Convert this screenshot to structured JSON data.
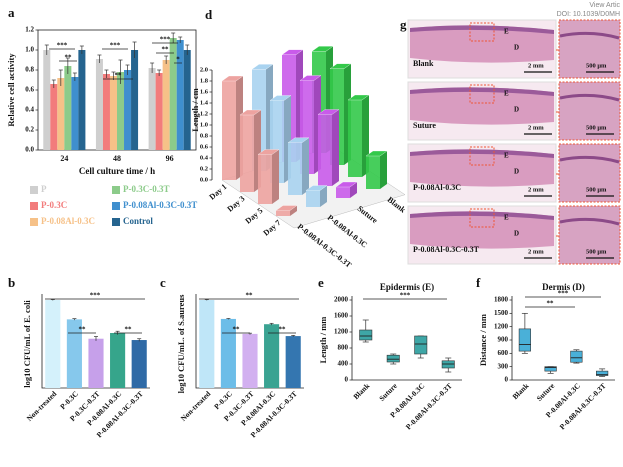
{
  "header": {
    "view": "View Artic",
    "doi": "DOI: 10.1039/D0MH"
  },
  "chart_data": [
    {
      "panel_label": "a",
      "type": "grouped_bar",
      "x_label": "Cell culture time / h",
      "y_label": "Relative cell activity",
      "categories": [
        "24",
        "48",
        "96"
      ],
      "series": [
        {
          "name": "P",
          "color": "#cfcfcf",
          "values": [
            1.0,
            0.91,
            0.82
          ],
          "errors": [
            0.05,
            0.04,
            0.05
          ]
        },
        {
          "name": "P-0.3C",
          "color": "#f27c7c",
          "values": [
            0.66,
            0.76,
            0.77
          ],
          "errors": [
            0.04,
            0.04,
            0.03
          ]
        },
        {
          "name": "P-0.08Al-0.3C",
          "color": "#f6c188",
          "values": [
            0.72,
            0.74,
            0.9
          ],
          "errors": [
            0.08,
            0.04,
            0.04
          ]
        },
        {
          "name": "P-0.3C-0.3T",
          "color": "#8ccb8a",
          "values": [
            0.84,
            0.78,
            1.12
          ],
          "errors": [
            0.08,
            0.12,
            0.05
          ]
        },
        {
          "name": "P-0.08Al-0.3C-0.3T",
          "color": "#3f8fce",
          "values": [
            0.73,
            0.8,
            1.1
          ],
          "errors": [
            0.04,
            0.05,
            0.03
          ]
        },
        {
          "name": "Control",
          "color": "#25648f",
          "values": [
            1.0,
            1.0,
            1.0
          ],
          "errors": [
            0.04,
            0.08,
            0.05
          ]
        }
      ],
      "ylim": [
        0,
        1.2
      ],
      "yticks": [
        {
          "value": 0,
          "label": "0.0"
        },
        0.2,
        0.4,
        0.6,
        0.8,
        {
          "value": 1,
          "label": "1.0"
        },
        1.2
      ],
      "annotations": [
        "***",
        "**",
        "***",
        "**",
        "***",
        "**",
        "*"
      ]
    },
    {
      "panel_label": "d",
      "type": "bar3d",
      "y_label": "Length / cm",
      "categories": [
        "Day 1",
        "Day 3",
        "Day 5",
        "Day 7"
      ],
      "series": [
        {
          "name": "Blank",
          "color": "#33c94a",
          "values": [
            1.85,
            1.75,
            1.4,
            0.6
          ]
        },
        {
          "name": "Suture",
          "color": "#c95bea",
          "values": [
            1.95,
            1.7,
            1.3,
            0.2
          ]
        },
        {
          "name": "P-0.08Al-0.3C",
          "color": "#a9d3f0",
          "values": [
            1.85,
            1.5,
            0.95,
            0.3
          ]
        },
        {
          "name": "P-0.08Al-0.3C-0.3T",
          "color": "#eda3a0",
          "values": [
            1.8,
            1.4,
            0.9,
            0.1
          ]
        }
      ],
      "ylim": [
        0,
        2
      ],
      "yticks": [
        {
          "value": 0,
          "label": "0.0"
        },
        0.2,
        0.4,
        0.6,
        0.8,
        {
          "value": 1,
          "label": "1.0"
        },
        1.2,
        1.4,
        1.6,
        1.8,
        {
          "value": 2,
          "label": "2.0"
        }
      ]
    },
    {
      "panel_label": "b",
      "type": "bar",
      "y_label": "log10 CFU/mL of E. coli",
      "categories": [
        "Non-treated",
        "P-0.3C",
        "P-0.3C-0.3T",
        "P-0.08Al-0.3C",
        "P-0.08Al-0.3C-0.3T"
      ],
      "values": [
        10,
        7.8,
        5.6,
        6.25,
        5.45
      ],
      "errors": [
        0.05,
        0.08,
        0.25,
        0.2,
        0.15
      ],
      "colors": [
        "#d4f1fb",
        "#86c8ec",
        "#c6a0ea",
        "#36a58b",
        "#2f6aa6"
      ],
      "ylim": [
        0,
        10
      ],
      "annotations": [
        "***",
        "**",
        "**"
      ]
    },
    {
      "panel_label": "c",
      "type": "bar",
      "y_label": "log10 CFU/mL. of S.aureus",
      "categories": [
        "Non-treated",
        "P-0.3C",
        "P-0.3C-0.3T",
        "P-0.08Al-0.3C",
        "P-0.08Al-0.3C-0.3T"
      ],
      "values": [
        10,
        7.85,
        6.15,
        7.25,
        5.9
      ],
      "errors": [
        0.05,
        0.05,
        0.08,
        0.1,
        0.08
      ],
      "colors": [
        "#bfe6f8",
        "#6cbde8",
        "#d2b0f0",
        "#3aa392",
        "#3476b0"
      ],
      "ylim": [
        0,
        10
      ],
      "annotations": [
        "**",
        "**",
        "**"
      ]
    },
    {
      "panel_label": "e",
      "type": "box",
      "title": "Epidermis (E)",
      "y_label": "Length / mm",
      "categories": [
        "Blank",
        "Suture",
        "P-0.08Al-0.3C",
        "P-0.08Al-0.3C-0.3T"
      ],
      "boxes": [
        {
          "min": 950,
          "q1": 1000,
          "median": 1100,
          "q3": 1250,
          "max": 1500
        },
        {
          "min": 400,
          "q1": 450,
          "median": 520,
          "q3": 620,
          "max": 650
        },
        {
          "min": 550,
          "q1": 650,
          "median": 900,
          "q3": 1100,
          "max": 1100
        },
        {
          "min": 200,
          "q1": 300,
          "median": 400,
          "q3": 480,
          "max": 550
        }
      ],
      "color": "#3ea6a6",
      "ylim": [
        0,
        2000
      ],
      "yticks": [
        0,
        400,
        800,
        1200,
        1600,
        2000
      ],
      "annotations": [
        "***"
      ]
    },
    {
      "panel_label": "f",
      "type": "box",
      "title": "Dermis (D)",
      "y_label": "Distance / mm",
      "categories": [
        "Blank",
        "Suture",
        "P-0.08Al-0.3C",
        "P-0.08Al-0.3C-0.3T"
      ],
      "boxes": [
        {
          "min": 600,
          "q1": 650,
          "median": 800,
          "q3": 1150,
          "max": 1500
        },
        {
          "min": 150,
          "q1": 200,
          "median": 280,
          "q3": 300,
          "max": 300
        },
        {
          "min": 380,
          "q1": 400,
          "median": 500,
          "q3": 650,
          "max": 680
        },
        {
          "min": 80,
          "q1": 100,
          "median": 120,
          "q3": 200,
          "max": 250
        }
      ],
      "color": "#4ab0d8",
      "ylim": [
        0,
        1800
      ],
      "yticks": [
        0,
        300,
        600,
        900,
        1200,
        1500,
        1800
      ],
      "annotations": [
        "**",
        "***"
      ]
    }
  ],
  "image_panel": {
    "panel_label": "g",
    "rows": [
      {
        "label": "Blank"
      },
      {
        "label": "Suture"
      },
      {
        "label": "P-0.08Al-0.3C"
      },
      {
        "label": "P-0.08Al-0.3C-0.3T"
      }
    ],
    "epidermis": "E",
    "dermis": "D",
    "scale_main": "2 mm",
    "scale_zoom": "500 μm"
  }
}
